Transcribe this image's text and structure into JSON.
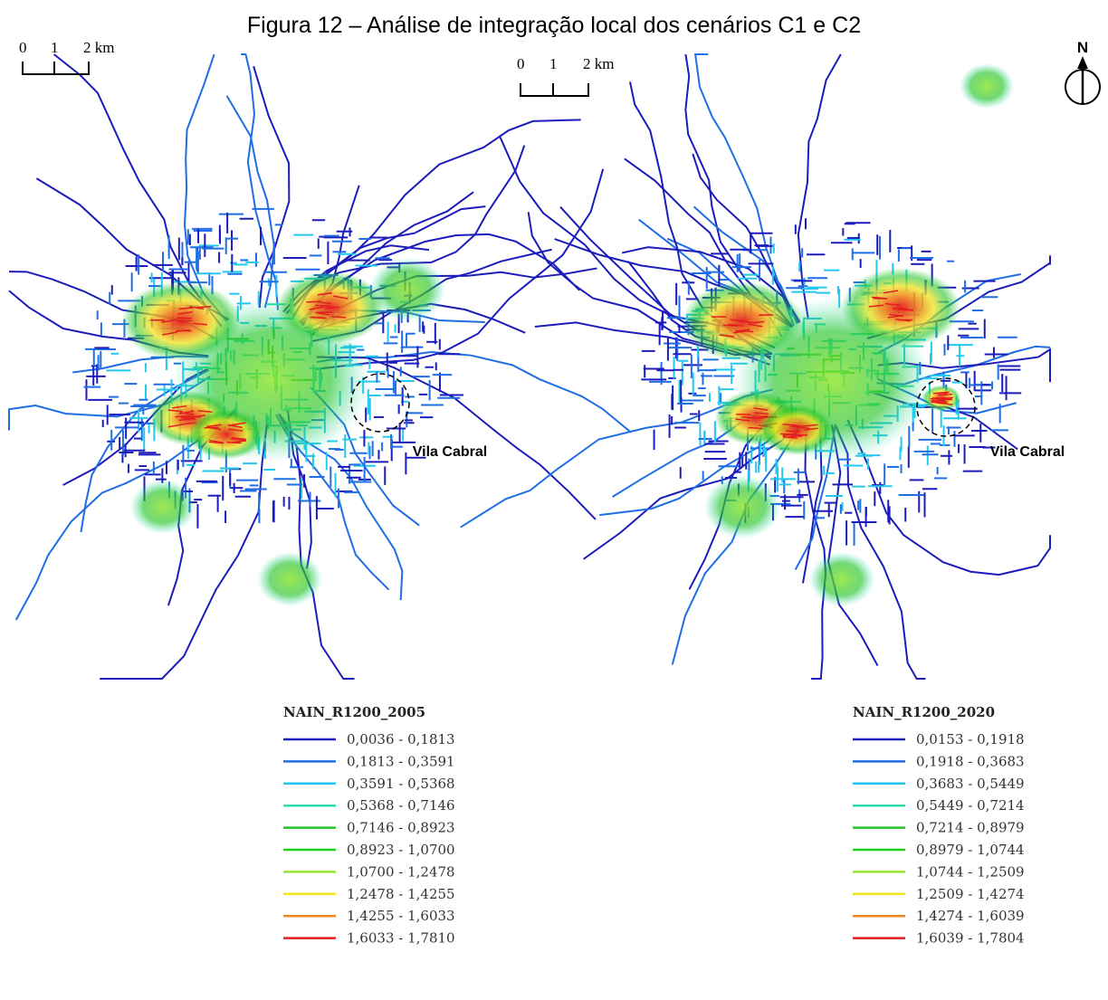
{
  "title": "Figura 12 – Análise de integração local dos cenários C1 e C2",
  "north": "N",
  "maps": [
    {
      "scale_labels": [
        "0",
        "1",
        "2 km"
      ],
      "place_label": "Vila Cabral",
      "legend": {
        "title": "NAIN_R1200_2005",
        "classes": [
          {
            "label": "0,0036 - 0,1813",
            "color": "#1c1cbc"
          },
          {
            "label": "0,1813 - 0,3591",
            "color": "#1f6ee6"
          },
          {
            "label": "0,3591 - 0,5368",
            "color": "#22c8f0"
          },
          {
            "label": "0,5368 - 0,7146",
            "color": "#2adcb0"
          },
          {
            "label": "0,7146 - 0,8923",
            "color": "#26c42a"
          },
          {
            "label": "0,8923 - 1,0700",
            "color": "#22d01e"
          },
          {
            "label": "1,0700 - 1,2478",
            "color": "#90e632"
          },
          {
            "label": "1,2478 - 1,4255",
            "color": "#f0e41e"
          },
          {
            "label": "1,4255 - 1,6033",
            "color": "#f0881e"
          },
          {
            "label": "1,6033 - 1,7810",
            "color": "#e41e1e"
          }
        ]
      }
    },
    {
      "scale_labels": [
        "0",
        "1",
        "2 km"
      ],
      "place_label": "Vila Cabral",
      "legend": {
        "title": "NAIN_R1200_2020",
        "classes": [
          {
            "label": "0,0153 - 0,1918",
            "color": "#1c1cbc"
          },
          {
            "label": "0,1918 - 0,3683",
            "color": "#1f6ee6"
          },
          {
            "label": "0,3683 - 0,5449",
            "color": "#22c8f0"
          },
          {
            "label": "0,5449 - 0,7214",
            "color": "#2adcb0"
          },
          {
            "label": "0,7214 - 0,8979",
            "color": "#26c42a"
          },
          {
            "label": "0,8979 - 1,0744",
            "color": "#22d01e"
          },
          {
            "label": "1,0744 - 1,2509",
            "color": "#90e632"
          },
          {
            "label": "1,2509 - 1,4274",
            "color": "#f0e41e"
          },
          {
            "label": "1,4274 - 1,6039",
            "color": "#f0881e"
          },
          {
            "label": "1,6039 - 1,7804",
            "color": "#e41e1e"
          }
        ]
      }
    }
  ]
}
